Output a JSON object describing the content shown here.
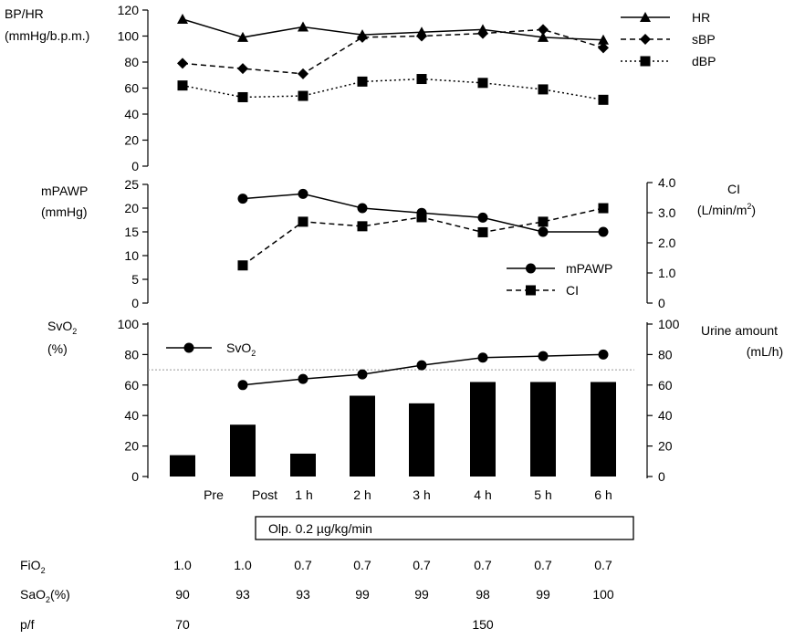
{
  "chart_data": [
    {
      "type": "line",
      "panel": "top",
      "ylabel_lines": [
        "BP/HR",
        "(mmHg/b.p.m.)"
      ],
      "ylim": [
        0,
        120
      ],
      "yticks": [
        0,
        20,
        40,
        60,
        80,
        100,
        120
      ],
      "legend_position": "top-right",
      "x": [
        "Pre",
        "Post",
        "1 h",
        "2 h",
        "3 h",
        "4 h",
        "5 h",
        "6 h"
      ],
      "series": [
        {
          "name": "HR",
          "marker": "triangle",
          "dash": "solid",
          "values": [
            113,
            99,
            107,
            101,
            103,
            105,
            99,
            97
          ]
        },
        {
          "name": "sBP",
          "marker": "diamond",
          "dash": "dashed",
          "values": [
            79,
            75,
            71,
            99,
            100,
            102,
            105,
            91
          ]
        },
        {
          "name": "dBP",
          "marker": "square",
          "dash": "dotted",
          "values": [
            62,
            53,
            54,
            65,
            67,
            64,
            59,
            51
          ]
        }
      ]
    },
    {
      "type": "line",
      "panel": "middle",
      "ylabel_lines": [
        "mPAWP",
        "(mmHg)"
      ],
      "ylim": [
        0,
        25
      ],
      "yticks": [
        0,
        5,
        10,
        15,
        20,
        25
      ],
      "y2label_lines": [
        "CI"
      ],
      "y2unit": {
        "base": "(L/min/m",
        "sup": "2",
        "end": ")"
      },
      "y2lim": [
        0,
        4
      ],
      "y2ticks": [
        "0",
        "1.0",
        "2.0",
        "3.0",
        "4.0"
      ],
      "legend_position": "bottom-right",
      "x": [
        "Pre",
        "Post",
        "1 h",
        "2 h",
        "3 h",
        "4 h",
        "5 h",
        "6 h"
      ],
      "series": [
        {
          "name": "mPAWP",
          "axis": "left",
          "marker": "circle",
          "dash": "solid",
          "values": [
            null,
            22,
            23,
            20,
            19,
            18,
            15,
            15
          ]
        },
        {
          "name": "CI",
          "axis": "right",
          "marker": "square",
          "dash": "dashed",
          "values": [
            null,
            1.25,
            2.7,
            2.55,
            2.85,
            2.35,
            2.7,
            3.15
          ]
        }
      ]
    },
    {
      "type": "bar",
      "panel": "bottom",
      "ylabel": {
        "base": "SvO",
        "sub": "2"
      },
      "ylabel_unit": "(%)",
      "ylim": [
        0,
        100
      ],
      "yticks": [
        0,
        20,
        40,
        60,
        80,
        100
      ],
      "y2label_lines": [
        "Urine amount",
        "(mL/h)"
      ],
      "y2lim": [
        0,
        100
      ],
      "y2ticks": [
        0,
        20,
        40,
        60,
        80,
        100
      ],
      "reference_line": 70,
      "legend_position": "top-left",
      "legend_label": {
        "base": "SvO",
        "sub": "2"
      },
      "categories": [
        "Pre",
        "Post",
        "1 h",
        "2 h",
        "3 h",
        "4 h",
        "5 h",
        "6 h"
      ],
      "bars": {
        "name": "Urine amount",
        "values": [
          14,
          34,
          15,
          53,
          48,
          62,
          62,
          62
        ]
      },
      "line": {
        "name": "SvO2",
        "marker": "circle",
        "values": [
          null,
          60,
          64,
          67,
          73,
          78,
          79,
          80
        ]
      }
    }
  ],
  "infusion_box_label": "Olp. 0.2 µg/kg/min",
  "table": {
    "rows": [
      {
        "label": {
          "base": "FiO",
          "sub": "2",
          "end": ""
        },
        "values": [
          "1.0",
          "1.0",
          "0.7",
          "0.7",
          "0.7",
          "0.7",
          "0.7",
          "0.7"
        ]
      },
      {
        "label": {
          "base": "SaO",
          "sub": "2",
          "end": "(%)"
        },
        "values": [
          "90",
          "93",
          "93",
          "99",
          "99",
          "98",
          "99",
          "100"
        ]
      },
      {
        "label": {
          "base": "p/f",
          "sub": "",
          "end": ""
        },
        "values": [
          "70",
          "",
          "",
          "",
          "",
          "150",
          "",
          ""
        ]
      }
    ]
  },
  "colors": {
    "ink": "#000000",
    "reference_line": "#999999",
    "background": "#ffffff"
  }
}
